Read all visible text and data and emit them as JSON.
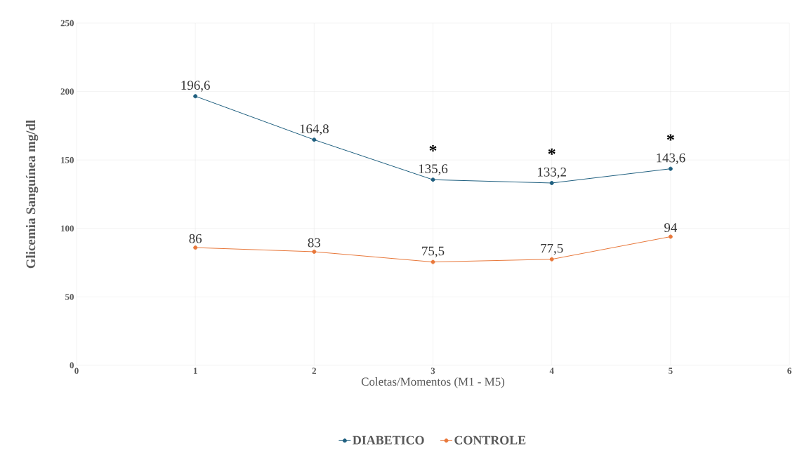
{
  "chart_data": {
    "type": "line",
    "xlabel": "Coletas/Momentos (M1 - M5)",
    "ylabel": "Glicemia Sanguínea mg/dl",
    "x": [
      1,
      2,
      3,
      4,
      5
    ],
    "series": [
      {
        "name": "DIABETICO",
        "color": "#1f5f7f",
        "values": [
          196.6,
          164.8,
          135.6,
          133.2,
          143.6
        ],
        "value_labels": [
          "196,6",
          "164,8",
          "135,6",
          "133,2",
          "143,6"
        ]
      },
      {
        "name": "CONTROLE",
        "color": "#e8773a",
        "values": [
          86,
          83,
          75.5,
          77.5,
          94
        ],
        "value_labels": [
          "86",
          "83",
          "75,5",
          "77,5",
          "94"
        ]
      }
    ],
    "annotations": [
      "*",
      "*",
      "*"
    ],
    "xlim": [
      0,
      6
    ],
    "xticks": [
      0,
      1,
      2,
      3,
      4,
      5,
      6
    ],
    "ylim": [
      0,
      250
    ],
    "yticks": [
      0,
      50,
      100,
      150,
      200,
      250
    ],
    "grid": true,
    "legend": "bottom",
    "marker": "circle",
    "line_style": "solid"
  }
}
